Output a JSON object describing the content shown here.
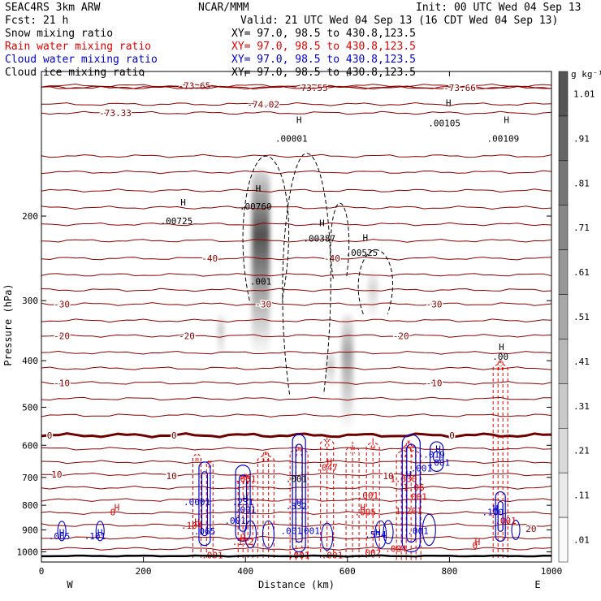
{
  "header": {
    "model": "SEAC4RS  3km ARW",
    "org": "NCAR/MMM",
    "init": "Init: 00 UTC Wed 04 Sep 13",
    "fcst": "Fcst:   21 h",
    "valid": "Valid: 21 UTC Wed 04 Sep 13 (16 CDT Wed 04 Sep 13)"
  },
  "legend": [
    {
      "name": "Snow mixing ratio",
      "xy": "XY=  97.0, 98.5 to 430.8,123.5",
      "color": "#000000"
    },
    {
      "name": "Rain water mixing ratio",
      "xy": "XY=  97.0, 98.5 to 430.8,123.5",
      "color": "#e00000"
    },
    {
      "name": "Cloud water mixing ratio",
      "xy": "XY=  97.0, 98.5 to 430.8,123.5",
      "color": "#0000cc"
    },
    {
      "name": "Cloud ice mixing ratio",
      "xy": "XY=  97.0, 98.5 to 430.8,123.5",
      "color": "#000000"
    }
  ],
  "colors": {
    "temperature": "#8b0000",
    "freezing_level": "#6e0000",
    "rain": "#e00000",
    "cloud_water": "#0000cc",
    "snow_shade": "#333333",
    "ice": "#000000",
    "ground": "#000000"
  },
  "chart_data": {
    "type": "cross-section",
    "xlabel": "Distance (km)",
    "ylabel": "Pressure (hPa)",
    "xlim": [
      0,
      1000
    ],
    "ylim": [
      1050,
      100
    ],
    "y_scale": "log",
    "x_ticks": [
      0,
      200,
      400,
      600,
      800,
      1000
    ],
    "y_ticks": [
      200,
      300,
      400,
      500,
      600,
      700,
      800,
      900,
      1000
    ],
    "x_end_labels": {
      "left": "W",
      "right": "E"
    },
    "colorbar": {
      "unit": "g kg⁻¹",
      "labels": [
        "1.01",
        ".91",
        ".81",
        ".71",
        ".61",
        ".51",
        ".41",
        ".31",
        ".21",
        ".11",
        ".01"
      ]
    },
    "isotherm_levels": [
      {
        "p": 122,
        "label": "-73.33",
        "x": 145
      },
      {
        "p": 107,
        "label": "-73.65",
        "x": 300
      },
      {
        "p": 117,
        "label": "-74.02",
        "x": 435
      },
      {
        "p": 108,
        "label": "-73.55",
        "x": 530
      },
      {
        "p": 108,
        "label": "-73.66",
        "x": 820
      },
      {
        "p": 150,
        "label": "",
        "x": 0
      },
      {
        "p": 162,
        "label": "",
        "x": 0
      },
      {
        "p": 177,
        "label": "",
        "x": 0
      },
      {
        "p": 192,
        "label": "",
        "x": 0
      },
      {
        "p": 208,
        "label": "",
        "x": 0
      },
      {
        "p": 225,
        "label": "",
        "x": 0
      },
      {
        "p": 245,
        "label": "-40",
        "x": 330
      },
      {
        "p": 265,
        "label": "",
        "x": 0
      },
      {
        "p": 285,
        "label": "",
        "x": 0
      },
      {
        "p": 305,
        "label": "-30",
        "x": 40
      },
      {
        "p": 330,
        "label": "",
        "x": 0
      },
      {
        "p": 355,
        "label": "-20",
        "x": 40
      },
      {
        "p": 385,
        "label": "",
        "x": 0
      },
      {
        "p": 415,
        "label": "",
        "x": 0
      },
      {
        "p": 445,
        "label": "-10",
        "x": 40
      },
      {
        "p": 480,
        "label": "",
        "x": 0
      },
      {
        "p": 520,
        "label": "",
        "x": 0
      },
      {
        "p": 610,
        "label": "",
        "x": 0
      },
      {
        "p": 650,
        "label": "",
        "x": 0
      },
      {
        "p": 690,
        "label": "10",
        "x": 30
      },
      {
        "p": 735,
        "label": "",
        "x": 0
      },
      {
        "p": 780,
        "label": "",
        "x": 0
      },
      {
        "p": 830,
        "label": "",
        "x": 0
      },
      {
        "p": 880,
        "label": "",
        "x": 0
      },
      {
        "p": 935,
        "label": "",
        "x": 0
      },
      {
        "p": 985,
        "label": "",
        "x": 0
      }
    ],
    "extra_isotherm_labels": [
      {
        "x": 570,
        "p": 245,
        "label": "-40"
      },
      {
        "x": 770,
        "p": 305,
        "label": "-30"
      },
      {
        "x": 435,
        "p": 305,
        "label": "-30"
      },
      {
        "x": 285,
        "p": 355,
        "label": "-20"
      },
      {
        "x": 705,
        "p": 355,
        "label": "-20"
      },
      {
        "x": 770,
        "p": 445,
        "label": "-10"
      },
      {
        "x": 255,
        "p": 695,
        "label": "10"
      },
      {
        "x": 680,
        "p": 695,
        "label": "10"
      },
      {
        "x": 960,
        "p": 895,
        "label": "20"
      }
    ],
    "freezing_level": {
      "p": 572,
      "label": "0",
      "label_xs": [
        16,
        260,
        805
      ]
    },
    "ground_level": 1020,
    "snow_plumes": [
      {
        "x": 430,
        "top": 160,
        "bottom": 390,
        "w": 22,
        "o": 0.85
      },
      {
        "x": 600,
        "top": 320,
        "bottom": 560,
        "w": 14,
        "o": 0.45
      },
      {
        "x": 567,
        "top": 380,
        "bottom": 460,
        "w": 10,
        "o": 0.25
      },
      {
        "x": 352,
        "top": 320,
        "bottom": 395,
        "w": 8,
        "o": 0.25
      },
      {
        "x": 650,
        "top": 260,
        "bottom": 330,
        "w": 12,
        "o": 0.2
      }
    ],
    "ice_outlines": [
      {
        "x": 440,
        "top": 150,
        "bottom": 300,
        "w": 40
      },
      {
        "x": 520,
        "top": 148,
        "bottom": 470,
        "w": 42
      },
      {
        "x": 585,
        "top": 188,
        "bottom": 270,
        "w": 16
      },
      {
        "x": 655,
        "top": 235,
        "bottom": 320,
        "w": 30
      }
    ],
    "rain_columns": [
      {
        "x": 305,
        "top": 630,
        "bottom": 1030,
        "w": 10
      },
      {
        "x": 330,
        "top": 650,
        "bottom": 1030,
        "w": 8
      },
      {
        "x": 400,
        "top": 690,
        "bottom": 1030,
        "w": 18
      },
      {
        "x": 440,
        "top": 620,
        "bottom": 1030,
        "w": 20
      },
      {
        "x": 505,
        "top": 600,
        "bottom": 1040,
        "w": 22
      },
      {
        "x": 560,
        "top": 580,
        "bottom": 1030,
        "w": 16
      },
      {
        "x": 610,
        "top": 600,
        "bottom": 1030,
        "w": 16
      },
      {
        "x": 650,
        "top": 590,
        "bottom": 1030,
        "w": 16
      },
      {
        "x": 720,
        "top": 590,
        "bottom": 1040,
        "w": 30
      },
      {
        "x": 900,
        "top": 400,
        "bottom": 1030,
        "w": 18
      }
    ],
    "cloud_water_contours": [
      {
        "x": 320,
        "top": 650,
        "bottom": 970,
        "w": 14
      },
      {
        "x": 395,
        "top": 660,
        "bottom": 950,
        "w": 18
      },
      {
        "x": 505,
        "top": 570,
        "bottom": 1000,
        "w": 16
      },
      {
        "x": 725,
        "top": 570,
        "bottom": 1000,
        "w": 22
      },
      {
        "x": 775,
        "top": 590,
        "bottom": 680,
        "w": 16
      },
      {
        "x": 900,
        "top": 750,
        "bottom": 950,
        "w": 12
      }
    ],
    "cloud_water_blobs": [
      {
        "x": 40,
        "p": 905,
        "w": 10
      },
      {
        "x": 115,
        "p": 905,
        "w": 10
      },
      {
        "x": 410,
        "p": 920,
        "w": 14
      },
      {
        "x": 445,
        "p": 920,
        "w": 14
      },
      {
        "x": 560,
        "p": 930,
        "w": 14
      },
      {
        "x": 665,
        "p": 920,
        "w": 14
      },
      {
        "x": 680,
        "p": 910,
        "w": 12
      },
      {
        "x": 760,
        "p": 900,
        "w": 16
      },
      {
        "x": 930,
        "p": 900,
        "w": 10
      }
    ],
    "annotations": [
      {
        "x": 505,
        "p": 128,
        "text": "H",
        "color": "black"
      },
      {
        "x": 490,
        "p": 140,
        "text": ".00001",
        "color": "black"
      },
      {
        "x": 798,
        "p": 118,
        "text": "H",
        "color": "black"
      },
      {
        "x": 790,
        "p": 130,
        "text": ".00105",
        "color": "black"
      },
      {
        "x": 912,
        "p": 128,
        "text": "H",
        "color": "black"
      },
      {
        "x": 905,
        "p": 140,
        "text": ".00109",
        "color": "black"
      },
      {
        "x": 278,
        "p": 190,
        "text": "H",
        "color": "black"
      },
      {
        "x": 265,
        "p": 208,
        "text": ".00725",
        "color": "black"
      },
      {
        "x": 425,
        "p": 178,
        "text": "H",
        "color": "black"
      },
      {
        "x": 420,
        "p": 194,
        "text": ".00760",
        "color": "black"
      },
      {
        "x": 550,
        "p": 210,
        "text": "H",
        "color": "black"
      },
      {
        "x": 545,
        "p": 226,
        "text": ".00387",
        "color": "black"
      },
      {
        "x": 635,
        "p": 225,
        "text": "H",
        "color": "black"
      },
      {
        "x": 628,
        "p": 242,
        "text": ".00525",
        "color": "black"
      },
      {
        "x": 430,
        "p": 278,
        "text": ".001",
        "color": "black"
      },
      {
        "x": 902,
        "p": 380,
        "text": "H",
        "color": "black"
      },
      {
        "x": 900,
        "p": 398,
        "text": ".00",
        "color": "black"
      },
      {
        "x": 565,
        "p": 660,
        "text": "H",
        "color": "red"
      },
      {
        "x": 560,
        "p": 678,
        "text": ".047",
        "color": "red"
      },
      {
        "x": 400,
        "p": 715,
        "text": ".001",
        "color": "red"
      },
      {
        "x": 500,
        "p": 715,
        "text": ".001",
        "color": "black"
      },
      {
        "x": 720,
        "p": 700,
        "text": "H",
        "color": "blue"
      },
      {
        "x": 710,
        "p": 715,
        "text": "1.330",
        "color": "red"
      },
      {
        "x": 730,
        "p": 745,
        "text": "1.06",
        "color": "red"
      },
      {
        "x": 745,
        "p": 680,
        "text": ".001",
        "color": "blue"
      },
      {
        "x": 778,
        "p": 620,
        "text": "H",
        "color": "blue"
      },
      {
        "x": 770,
        "p": 637,
        "text": ".019",
        "color": "blue"
      },
      {
        "x": 780,
        "p": 662,
        "text": ".001",
        "color": "blue"
      },
      {
        "x": 640,
        "p": 775,
        "text": ".001",
        "color": "red"
      },
      {
        "x": 735,
        "p": 780,
        "text": ".001",
        "color": "red"
      },
      {
        "x": 305,
        "p": 800,
        "text": ".0001",
        "color": "blue"
      },
      {
        "x": 400,
        "p": 785,
        "text": "H",
        "color": "blue"
      },
      {
        "x": 395,
        "p": 800,
        "text": ".231",
        "color": "blue"
      },
      {
        "x": 505,
        "p": 800,
        "text": "H",
        "color": "blue"
      },
      {
        "x": 500,
        "p": 815,
        "text": ".332",
        "color": "blue"
      },
      {
        "x": 400,
        "p": 830,
        "text": ".001",
        "color": "blue"
      },
      {
        "x": 380,
        "p": 875,
        "text": ".001",
        "color": "blue"
      },
      {
        "x": 148,
        "p": 820,
        "text": "H",
        "color": "red"
      },
      {
        "x": 140,
        "p": 840,
        "text": "0",
        "color": "red"
      },
      {
        "x": 630,
        "p": 820,
        "text": "H",
        "color": "red"
      },
      {
        "x": 635,
        "p": 840,
        "text": ".005",
        "color": "red"
      },
      {
        "x": 720,
        "p": 835,
        "text": "1.201",
        "color": "red"
      },
      {
        "x": 890,
        "p": 825,
        "text": "H",
        "color": "blue"
      },
      {
        "x": 885,
        "p": 840,
        "text": ".100",
        "color": "blue"
      },
      {
        "x": 910,
        "p": 875,
        "text": ".001",
        "color": "red"
      },
      {
        "x": 305,
        "p": 880,
        "text": "H",
        "color": "red"
      },
      {
        "x": 295,
        "p": 895,
        "text": ".104",
        "color": "red"
      },
      {
        "x": 320,
        "p": 920,
        "text": ".065",
        "color": "blue"
      },
      {
        "x": 40,
        "p": 925,
        "text": "H",
        "color": "blue"
      },
      {
        "x": 35,
        "p": 942,
        "text": ".065",
        "color": "blue"
      },
      {
        "x": 115,
        "p": 925,
        "text": "H",
        "color": "blue"
      },
      {
        "x": 105,
        "p": 942,
        "text": ".101",
        "color": "blue"
      },
      {
        "x": 490,
        "p": 918,
        "text": ".001",
        "color": "blue"
      },
      {
        "x": 525,
        "p": 918,
        "text": ".001",
        "color": "blue"
      },
      {
        "x": 660,
        "p": 925,
        "text": "H",
        "color": "blue"
      },
      {
        "x": 655,
        "p": 935,
        "text": ".534",
        "color": "blue"
      },
      {
        "x": 738,
        "p": 918,
        "text": ".001",
        "color": "blue"
      },
      {
        "x": 395,
        "p": 948,
        "text": "H",
        "color": "red"
      },
      {
        "x": 395,
        "p": 968,
        "text": ".172",
        "color": "red"
      },
      {
        "x": 855,
        "p": 968,
        "text": "H",
        "color": "red"
      },
      {
        "x": 850,
        "p": 985,
        "text": "0",
        "color": "red"
      },
      {
        "x": 695,
        "p": 1000,
        "text": ".004",
        "color": "red"
      },
      {
        "x": 645,
        "p": 1020,
        "text": ".002",
        "color": "red"
      },
      {
        "x": 335,
        "p": 1032,
        "text": ".001",
        "color": "red"
      },
      {
        "x": 505,
        "p": 1032,
        "text": ".001",
        "color": "red"
      },
      {
        "x": 570,
        "p": 1032,
        "text": ".001",
        "color": "red"
      }
    ]
  }
}
